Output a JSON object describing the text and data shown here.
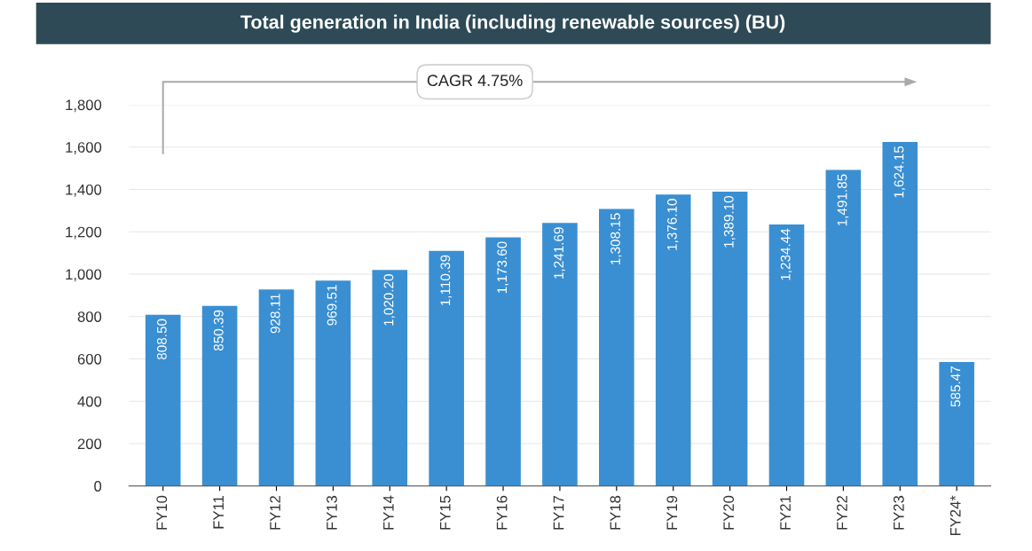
{
  "chart_data": {
    "type": "bar",
    "title": "Total generation in India (including renewable sources) (BU)",
    "categories": [
      "FY10",
      "FY11",
      "FY12",
      "FY13",
      "FY14",
      "FY15",
      "FY16",
      "FY17",
      "FY18",
      "FY19",
      "FY20",
      "FY21",
      "FY22",
      "FY23",
      "FY24*"
    ],
    "values": [
      808.5,
      850.39,
      928.11,
      969.51,
      1020.2,
      1110.39,
      1173.6,
      1241.69,
      1308.15,
      1376.1,
      1389.1,
      1234.44,
      1491.85,
      1624.15,
      585.47
    ],
    "value_labels": [
      "808.50",
      "850.39",
      "928.11",
      "969.51",
      "1,020.20",
      "1,110.39",
      "1,173.60",
      "1,241.69",
      "1,308.15",
      "1,376.10",
      "1,389.10",
      "1,234.44",
      "1,491.85",
      "1,624.15",
      "585.47"
    ],
    "color": "#3a8fd2",
    "ylim": [
      0,
      1800
    ],
    "yticks": [
      0,
      200,
      400,
      600,
      800,
      {
        "value": 1000,
        "label": "1,000"
      },
      {
        "value": 1200,
        "label": "1,200"
      },
      {
        "value": 1400,
        "label": "1,400"
      },
      {
        "value": 1600,
        "label": "1,600"
      },
      {
        "value": 1800,
        "label": "1,800"
      }
    ],
    "grid": "y",
    "legend": false,
    "annotations": [
      "CAGR 4.75%"
    ]
  }
}
